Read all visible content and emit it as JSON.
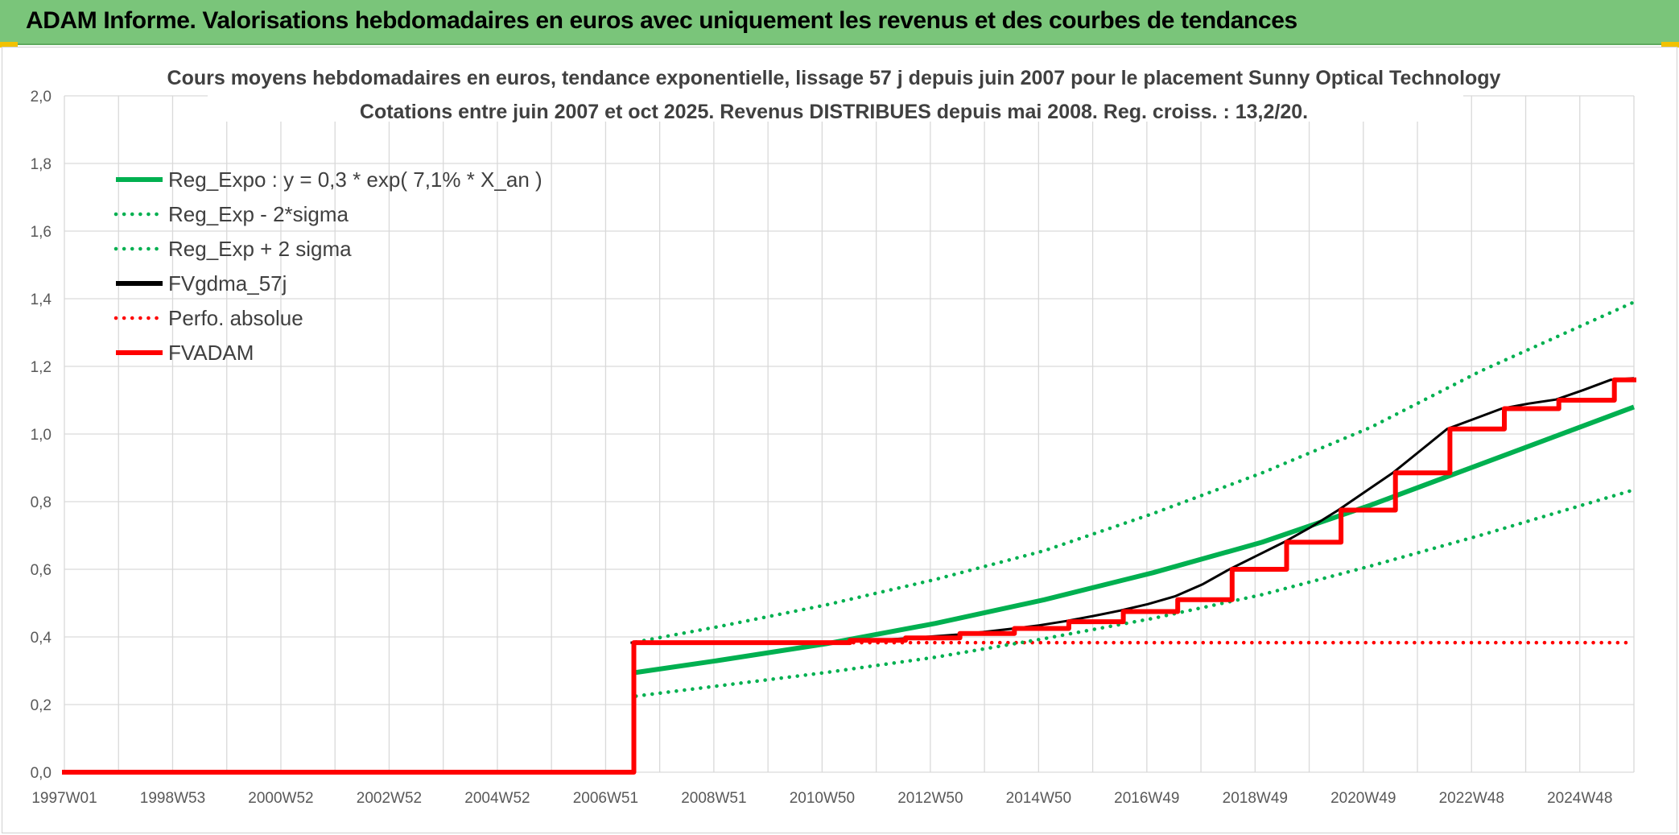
{
  "banner": {
    "title": "ADAM Informe. Valorisations hebdomadaires en euros avec uniquement les revenus et des courbes de tendances"
  },
  "colors": {
    "banner_bg": "#7ac57a",
    "green": "#00b050",
    "red": "#ff0000",
    "black": "#000000",
    "accent": "#f2c200"
  },
  "chart_data": {
    "type": "line",
    "title": [
      "Cours moyens hebdomadaires en euros, tendance exponentielle, lissage 57 j depuis juin 2007 pour le placement Sunny Optical Technology",
      "Cotations entre juin 2007 et oct 2025. Revenus DISTRIBUES depuis mai 2008. Reg. croiss. : 13,2/20."
    ],
    "xlabel": "",
    "ylabel": "",
    "x_tick_labels": [
      "1997W01",
      "1998W53",
      "2000W52",
      "2002W52",
      "2004W52",
      "2006W51",
      "2008W51",
      "2010W50",
      "2012W50",
      "2014W50",
      "2016W49",
      "2018W49",
      "2020W49",
      "2022W48",
      "2024W48"
    ],
    "y_tick_labels": [
      "0,0",
      "0,2",
      "0,4",
      "0,6",
      "0,8",
      "1,0",
      "1,2",
      "1,4",
      "1,6",
      "1,8",
      "2,0"
    ],
    "xlim": [
      1997.0,
      2025.83
    ],
    "ylim": [
      0,
      2.0
    ],
    "grid": true,
    "legend_position": "top-left",
    "series": [
      {
        "name": "Reg_Expo : y = 0,3 * exp( 7,1% *  X_an )",
        "color": "#00b050",
        "style": "solid",
        "x": [
          2007.5,
          2009,
          2011,
          2013,
          2015,
          2017,
          2019,
          2021,
          2023,
          2025.83
        ],
        "values": [
          0.295,
          0.33,
          0.38,
          0.44,
          0.51,
          0.59,
          0.68,
          0.79,
          0.91,
          1.08
        ]
      },
      {
        "name": "Reg_Exp - 2*sigma",
        "color": "#00b050",
        "style": "dotted",
        "x": [
          2007.5,
          2009,
          2011,
          2013,
          2015,
          2017,
          2019,
          2021,
          2023,
          2025.83
        ],
        "values": [
          0.225,
          0.255,
          0.295,
          0.34,
          0.395,
          0.455,
          0.525,
          0.61,
          0.7,
          0.835
        ]
      },
      {
        "name": "Reg_Exp + 2 sigma",
        "color": "#00b050",
        "style": "dotted",
        "x": [
          2007.5,
          2009,
          2011,
          2013,
          2015,
          2017,
          2019,
          2021,
          2023,
          2025.83
        ],
        "values": [
          0.385,
          0.43,
          0.495,
          0.57,
          0.655,
          0.765,
          0.885,
          1.02,
          1.185,
          1.39
        ]
      },
      {
        "name": "FVgdma_57j",
        "color": "#000000",
        "style": "solid",
        "x": [
          2007.4,
          2011.4,
          2011.9,
          2012.4,
          2012.9,
          2013.4,
          2013.9,
          2014.4,
          2014.9,
          2015.4,
          2015.9,
          2016.4,
          2016.9,
          2017.4,
          2017.9,
          2018.4,
          2018.9,
          2019.4,
          2019.9,
          2020.4,
          2020.9,
          2021.4,
          2021.9,
          2022.4,
          2022.9,
          2023.4,
          2023.9,
          2024.4,
          2024.9,
          2025.4,
          2025.83
        ],
        "values": [
          0.383,
          0.386,
          0.39,
          0.395,
          0.401,
          0.407,
          0.415,
          0.424,
          0.434,
          0.447,
          0.462,
          0.478,
          0.497,
          0.52,
          0.555,
          0.6,
          0.64,
          0.68,
          0.725,
          0.775,
          0.83,
          0.885,
          0.95,
          1.015,
          1.045,
          1.075,
          1.09,
          1.102,
          1.13,
          1.16,
          1.165
        ]
      },
      {
        "name": "Perfo. absolue",
        "color": "#ff0000",
        "style": "dotted",
        "x": [
          1997.0,
          2007.46,
          2007.46,
          2025.83
        ],
        "values": [
          0.0,
          0.0,
          0.383,
          0.383
        ]
      },
      {
        "name": "FVADAM",
        "color": "#ff0000",
        "style": "solid",
        "step": true,
        "x": [
          1997.0,
          2007.46,
          2011.43,
          2012.45,
          2013.45,
          2014.45,
          2015.45,
          2016.45,
          2017.45,
          2018.45,
          2019.45,
          2020.45,
          2021.45,
          2022.45,
          2023.45,
          2024.45,
          2025.47,
          2025.83
        ],
        "values": [
          0.0,
          0.383,
          0.39,
          0.397,
          0.41,
          0.425,
          0.445,
          0.475,
          0.51,
          0.6,
          0.68,
          0.775,
          0.885,
          1.015,
          1.075,
          1.1,
          1.16,
          1.16
        ]
      }
    ]
  }
}
